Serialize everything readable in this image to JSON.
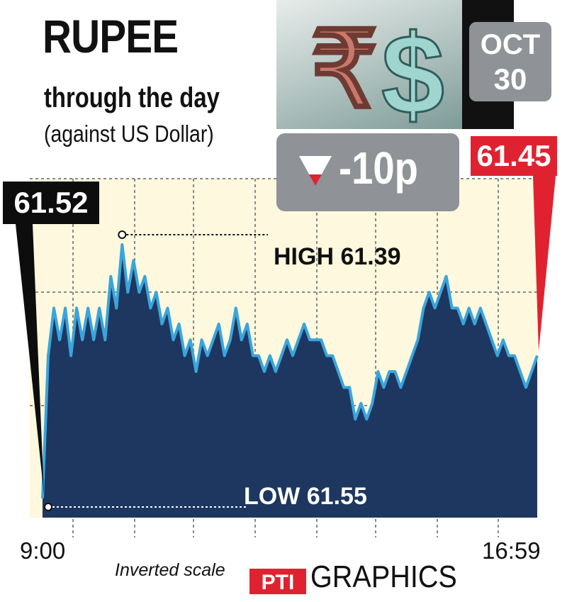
{
  "header": {
    "title": "RUPEE",
    "subtitle": "through the day",
    "subtitle2": "(against US Dollar)"
  },
  "date": {
    "month": "OCT",
    "day": "30"
  },
  "change": {
    "value": "-10p",
    "direction": "down-arrow-icon"
  },
  "close_label": "61.45",
  "open_label": "61.52",
  "footer": {
    "start_time": "9:00",
    "end_time": "16:59",
    "note": "Inverted scale",
    "brand": "PTI",
    "brand_suffix": "GRAPHICS"
  },
  "colors": {
    "area": "#1e3760",
    "line": "#3aa5dc",
    "background": "#fdf8de",
    "close": "#e02230",
    "open": "#0d0d0d",
    "box": "#8f9297"
  },
  "chart_data": {
    "type": "area",
    "y_inverted": true,
    "grid": true,
    "x_start": "9:00",
    "x_end": "16:59",
    "open": 61.52,
    "close": 61.45,
    "high_label": "HIGH",
    "high_value": 61.39,
    "low_label": "LOW",
    "low_value": 61.55,
    "values": [
      61.55,
      61.46,
      61.43,
      61.45,
      61.43,
      61.46,
      61.43,
      61.45,
      61.43,
      61.45,
      61.43,
      61.45,
      61.41,
      61.43,
      61.39,
      61.42,
      61.4,
      61.42,
      61.41,
      61.43,
      61.42,
      61.44,
      61.43,
      61.45,
      61.44,
      61.46,
      61.45,
      61.47,
      61.45,
      61.46,
      61.45,
      61.44,
      61.46,
      61.45,
      61.43,
      61.45,
      61.44,
      61.46,
      61.46,
      61.47,
      61.46,
      61.47,
      61.46,
      61.45,
      61.46,
      61.45,
      61.44,
      61.45,
      61.45,
      61.45,
      61.46,
      61.46,
      61.47,
      61.48,
      61.48,
      61.5,
      61.49,
      61.5,
      61.49,
      61.47,
      61.48,
      61.47,
      61.47,
      61.48,
      61.47,
      61.46,
      61.45,
      61.43,
      61.42,
      61.43,
      61.42,
      61.41,
      61.43,
      61.43,
      61.44,
      61.43,
      61.44,
      61.43,
      61.44,
      61.45,
      61.46,
      61.45,
      61.46,
      61.46,
      61.47,
      61.48,
      61.47,
      61.46
    ]
  }
}
